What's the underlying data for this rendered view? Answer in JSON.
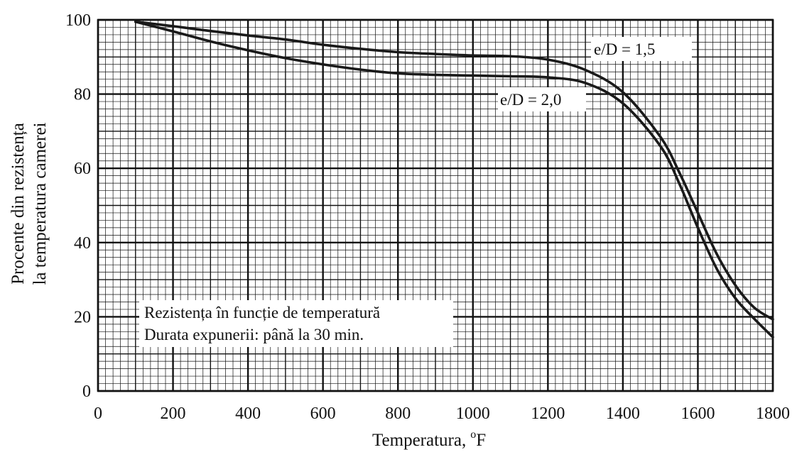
{
  "chart_data": {
    "type": "line",
    "title": "",
    "xlabel": "Temperatura,",
    "xlabel_unit_sup": "o",
    "xlabel_unit": "F",
    "ylabel": [
      "Procente din rezistența",
      "la temperatura camerei"
    ],
    "xlim": [
      0,
      1800
    ],
    "ylim": [
      0,
      100
    ],
    "x_ticks": [
      0,
      200,
      400,
      600,
      800,
      1000,
      1200,
      1400,
      1600,
      1800
    ],
    "y_ticks": [
      0,
      20,
      40,
      60,
      80,
      100
    ],
    "grid": "major and minor",
    "line_color": "#1a1a1a",
    "grid_color": "#111111",
    "series": [
      {
        "name": "e/D = 1,5",
        "points": [
          [
            100,
            99.5
          ],
          [
            200,
            98.3
          ],
          [
            300,
            97.0
          ],
          [
            400,
            95.8
          ],
          [
            500,
            94.7
          ],
          [
            600,
            93.3
          ],
          [
            700,
            92.2
          ],
          [
            800,
            91.3
          ],
          [
            900,
            90.8
          ],
          [
            1000,
            90.4
          ],
          [
            1100,
            90.2
          ],
          [
            1200,
            89.3
          ],
          [
            1300,
            86.5
          ],
          [
            1400,
            80.5
          ],
          [
            1500,
            68.5
          ],
          [
            1550,
            59.0
          ],
          [
            1600,
            48.0
          ],
          [
            1650,
            37.0
          ],
          [
            1700,
            28.5
          ],
          [
            1750,
            22.5
          ],
          [
            1800,
            19.3
          ]
        ]
      },
      {
        "name": "e/D = 2,0",
        "points": [
          [
            100,
            99.5
          ],
          [
            200,
            96.9
          ],
          [
            300,
            94.2
          ],
          [
            400,
            91.8
          ],
          [
            500,
            89.7
          ],
          [
            600,
            88.0
          ],
          [
            700,
            86.6
          ],
          [
            800,
            85.6
          ],
          [
            900,
            85.2
          ],
          [
            1000,
            85.0
          ],
          [
            1100,
            84.8
          ],
          [
            1200,
            84.5
          ],
          [
            1300,
            83.0
          ],
          [
            1400,
            77.5
          ],
          [
            1500,
            66.0
          ],
          [
            1550,
            56.0
          ],
          [
            1600,
            44.0
          ],
          [
            1650,
            33.0
          ],
          [
            1700,
            25.0
          ],
          [
            1750,
            19.5
          ],
          [
            1800,
            14.5
          ]
        ]
      }
    ],
    "annotation_lines": [
      "Rezistența în funcție de temperatură",
      "Durata expunerii: până la 30 min."
    ]
  }
}
